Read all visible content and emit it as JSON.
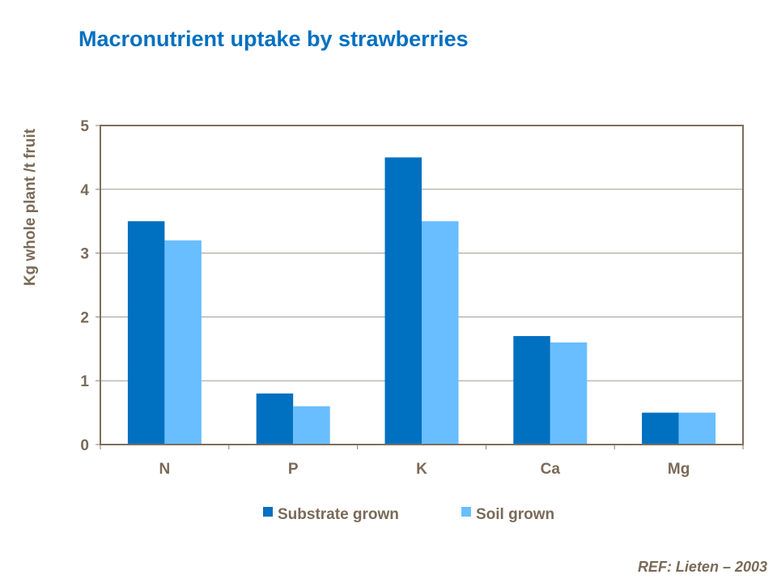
{
  "chart_data": {
    "type": "bar",
    "title": "Macronutrient uptake by strawberries",
    "xlabel": "",
    "ylabel": "Kg whole plant /t fruit",
    "categories": [
      "N",
      "P",
      "K",
      "Ca",
      "Mg"
    ],
    "series": [
      {
        "name": "Substrate grown",
        "values": [
          3.5,
          0.8,
          4.5,
          1.7,
          0.5
        ],
        "color": "#0070C0"
      },
      {
        "name": "Soil grown",
        "values": [
          3.2,
          0.6,
          3.5,
          1.6,
          0.5
        ],
        "color": "#69BEFF"
      }
    ],
    "ylim": [
      0,
      5
    ],
    "yticks": [
      "0",
      "1",
      "2",
      "3",
      "4",
      "5"
    ],
    "grid": true,
    "legend": "bottom"
  },
  "footer": {
    "ref": "REF:  Lieten – 2003"
  }
}
